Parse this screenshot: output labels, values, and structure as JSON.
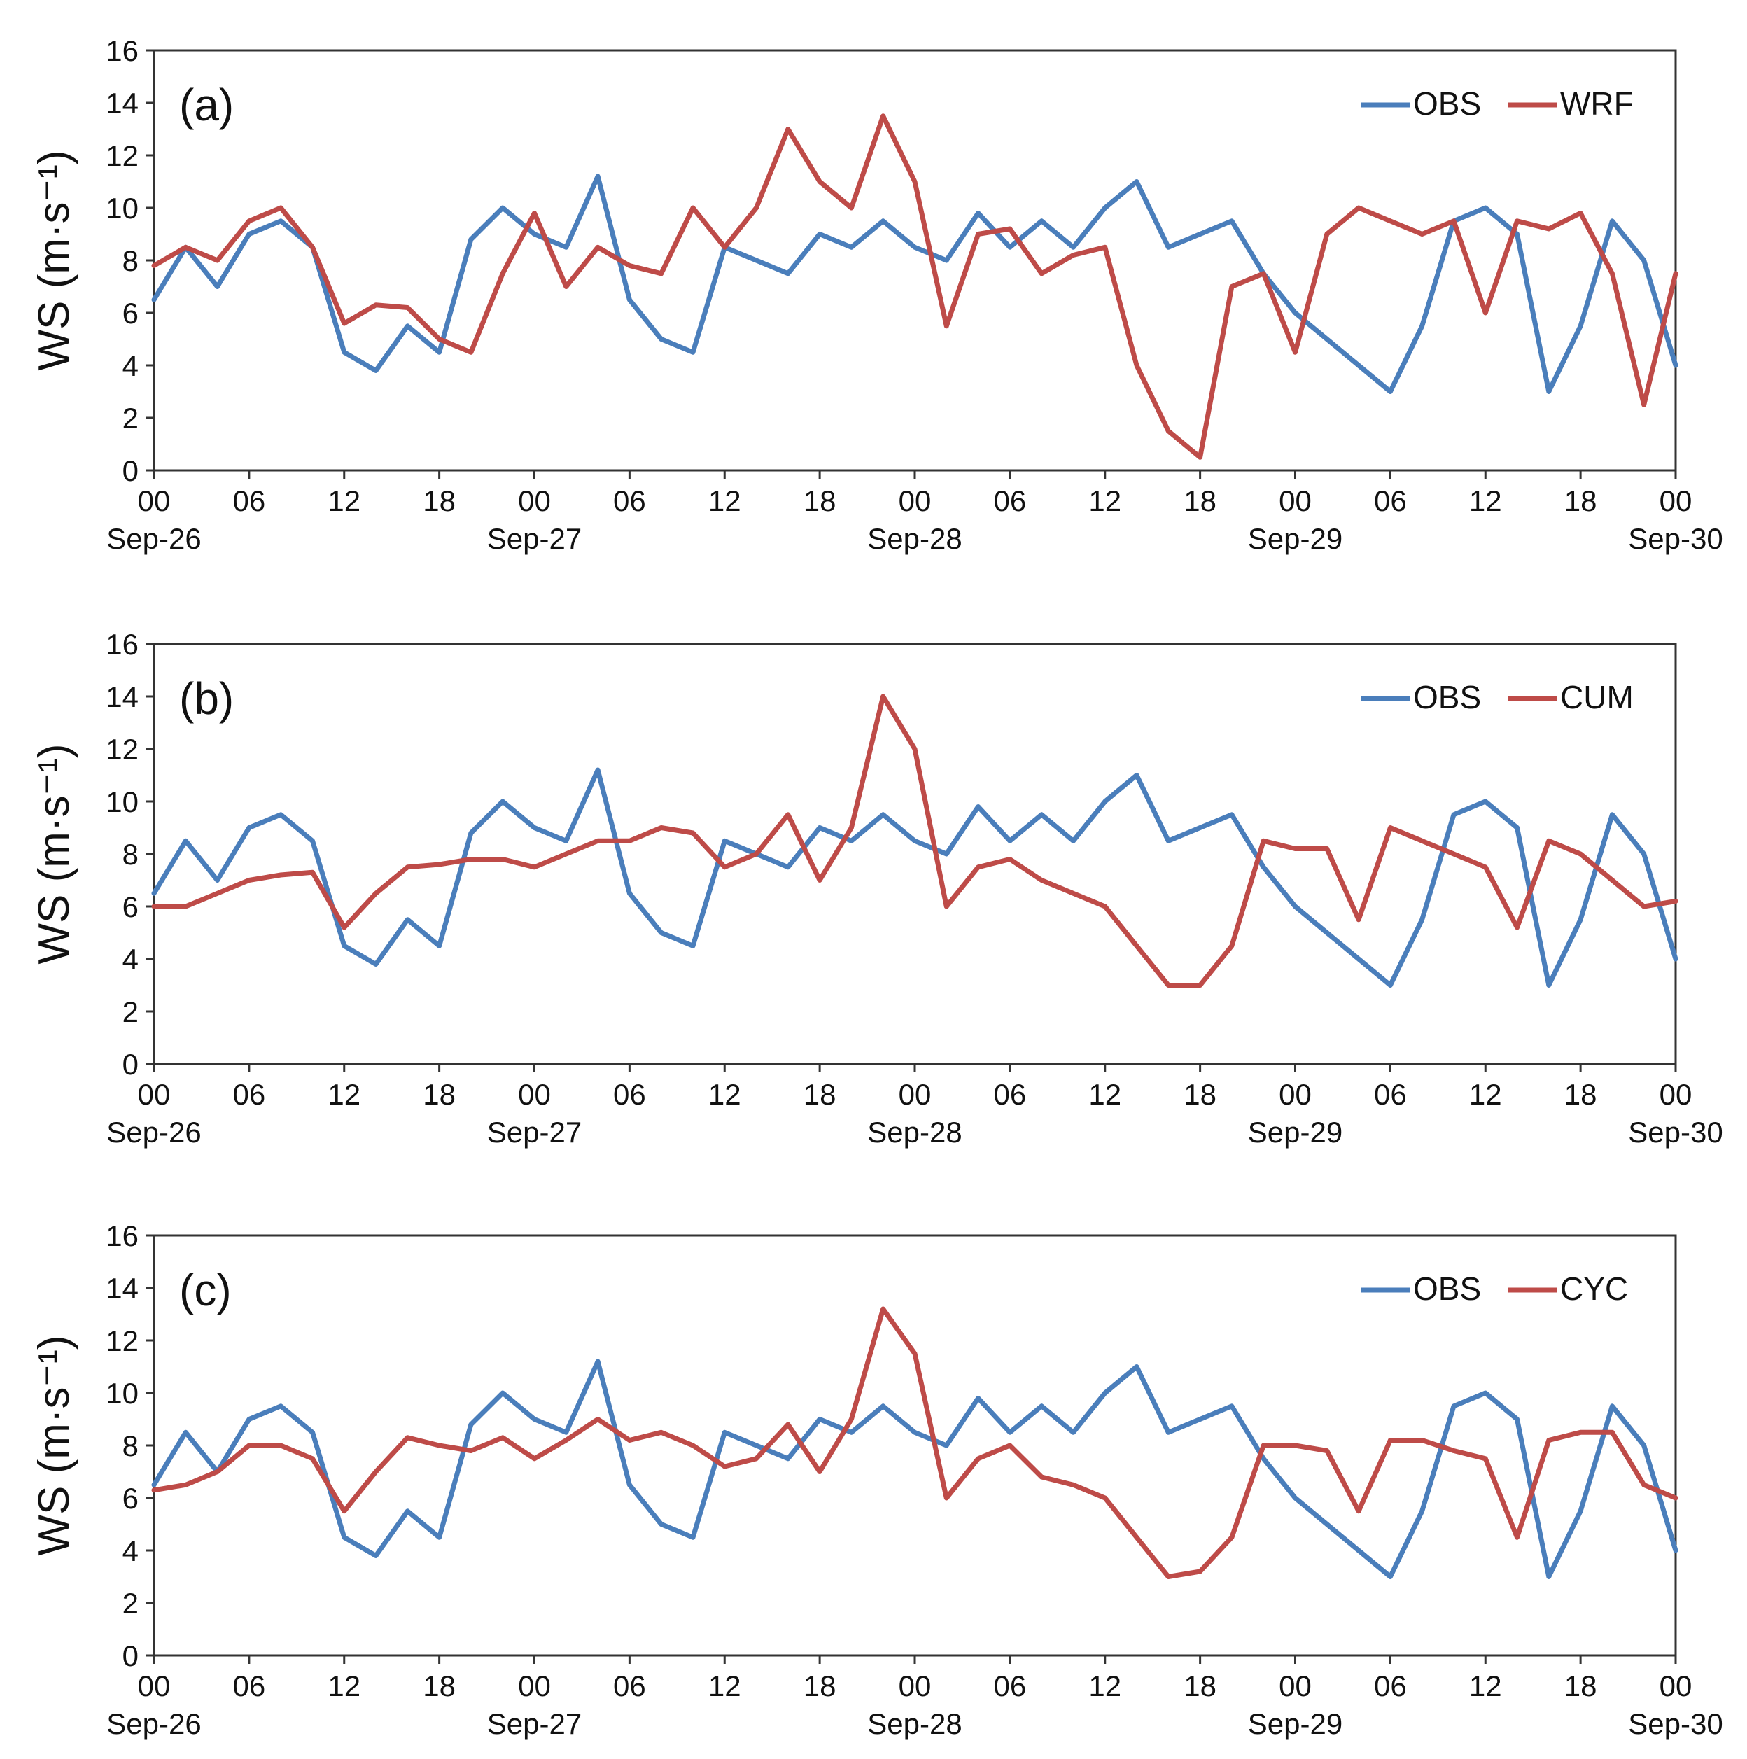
{
  "figure": {
    "ylabel": "WS (m·s⁻¹)",
    "x_tick_labels": [
      "00",
      "06",
      "12",
      "18",
      "00",
      "06",
      "12",
      "18",
      "00",
      "06",
      "12",
      "18",
      "00",
      "06",
      "12",
      "18",
      "00"
    ],
    "x_date_labels": [
      "Sep-26",
      "Sep-27",
      "Sep-28",
      "Sep-29",
      "Sep-30"
    ],
    "y_tick_labels": [
      "0",
      "2",
      "4",
      "6",
      "8",
      "10",
      "12",
      "14",
      "16"
    ]
  },
  "colors": {
    "OBS": "#4a7ebb",
    "model": "#be4b48",
    "axis": "#333333"
  },
  "chart_data": [
    {
      "type": "line",
      "panel_label": "(a)",
      "legend": [
        "OBS",
        "WRF"
      ],
      "legend_placement": "top-right",
      "ylabel": "WS (m·s⁻¹)",
      "xlim_hours": [
        0,
        96
      ],
      "ylim": [
        0,
        16
      ],
      "grid": false,
      "x_hours": [
        0,
        2,
        4,
        6,
        8,
        10,
        12,
        14,
        16,
        18,
        20,
        22,
        24,
        26,
        28,
        30,
        32,
        34,
        36,
        38,
        40,
        42,
        44,
        46,
        48,
        50,
        52,
        54,
        56,
        58,
        60,
        62,
        64,
        66,
        68,
        70,
        72,
        74,
        76,
        78,
        80,
        82,
        84,
        86,
        88,
        90,
        92,
        94,
        96
      ],
      "series": [
        {
          "name": "OBS",
          "values": [
            6.5,
            8.5,
            7.0,
            9.0,
            9.5,
            8.5,
            4.5,
            3.8,
            5.5,
            4.5,
            8.8,
            10.0,
            9.0,
            8.5,
            11.2,
            6.5,
            5.0,
            4.5,
            8.5,
            8.0,
            7.5,
            9.0,
            8.5,
            9.5,
            8.5,
            8.0,
            9.8,
            8.5,
            9.5,
            8.5,
            10.0,
            11.0,
            8.5,
            9.0,
            9.5,
            7.5,
            6.0,
            5.0,
            4.0,
            3.0,
            5.5,
            9.5,
            10.0,
            9.0,
            3.0,
            5.5,
            9.5,
            8.0,
            4.0
          ]
        },
        {
          "name": "WRF",
          "values": [
            7.8,
            8.5,
            8.0,
            9.5,
            10.0,
            8.5,
            5.6,
            6.3,
            6.2,
            5.0,
            4.5,
            7.5,
            9.8,
            7.0,
            8.5,
            7.8,
            7.5,
            10.0,
            8.5,
            10.0,
            13.0,
            11.0,
            10.0,
            13.5,
            11.0,
            5.5,
            9.0,
            9.2,
            7.5,
            8.2,
            8.5,
            4.0,
            1.5,
            0.5,
            7.0,
            7.5,
            4.5,
            9.0,
            10.0,
            9.5,
            9.0,
            9.5,
            6.0,
            9.5,
            9.2,
            9.8,
            7.5,
            2.5,
            7.5
          ]
        }
      ]
    },
    {
      "type": "line",
      "panel_label": "(b)",
      "legend": [
        "OBS",
        "CUM"
      ],
      "legend_placement": "top-right",
      "ylabel": "WS (m·s⁻¹)",
      "xlim_hours": [
        0,
        96
      ],
      "ylim": [
        0,
        16
      ],
      "grid": false,
      "x_hours": [
        0,
        2,
        4,
        6,
        8,
        10,
        12,
        14,
        16,
        18,
        20,
        22,
        24,
        26,
        28,
        30,
        32,
        34,
        36,
        38,
        40,
        42,
        44,
        46,
        48,
        50,
        52,
        54,
        56,
        58,
        60,
        62,
        64,
        66,
        68,
        70,
        72,
        74,
        76,
        78,
        80,
        82,
        84,
        86,
        88,
        90,
        92,
        94,
        96
      ],
      "series": [
        {
          "name": "OBS",
          "values": [
            6.5,
            8.5,
            7.0,
            9.0,
            9.5,
            8.5,
            4.5,
            3.8,
            5.5,
            4.5,
            8.8,
            10.0,
            9.0,
            8.5,
            11.2,
            6.5,
            5.0,
            4.5,
            8.5,
            8.0,
            7.5,
            9.0,
            8.5,
            9.5,
            8.5,
            8.0,
            9.8,
            8.5,
            9.5,
            8.5,
            10.0,
            11.0,
            8.5,
            9.0,
            9.5,
            7.5,
            6.0,
            5.0,
            4.0,
            3.0,
            5.5,
            9.5,
            10.0,
            9.0,
            3.0,
            5.5,
            9.5,
            8.0,
            4.0
          ]
        },
        {
          "name": "CUM",
          "values": [
            6.0,
            6.0,
            6.5,
            7.0,
            7.2,
            7.3,
            5.2,
            6.5,
            7.5,
            7.6,
            7.8,
            7.8,
            7.5,
            8.0,
            8.5,
            8.5,
            9.0,
            8.8,
            7.5,
            8.0,
            9.5,
            7.0,
            9.0,
            14.0,
            12.0,
            6.0,
            7.5,
            7.8,
            7.0,
            6.5,
            6.0,
            4.5,
            3.0,
            3.0,
            4.5,
            8.5,
            8.2,
            8.2,
            5.5,
            9.0,
            8.5,
            8.0,
            7.5,
            5.2,
            8.5,
            8.0,
            7.0,
            6.0,
            6.2
          ]
        }
      ]
    },
    {
      "type": "line",
      "panel_label": "(c)",
      "legend": [
        "OBS",
        "CYC"
      ],
      "legend_placement": "top-right",
      "ylabel": "WS (m·s⁻¹)",
      "xlim_hours": [
        0,
        96
      ],
      "ylim": [
        0,
        16
      ],
      "grid": false,
      "x_hours": [
        0,
        2,
        4,
        6,
        8,
        10,
        12,
        14,
        16,
        18,
        20,
        22,
        24,
        26,
        28,
        30,
        32,
        34,
        36,
        38,
        40,
        42,
        44,
        46,
        48,
        50,
        52,
        54,
        56,
        58,
        60,
        62,
        64,
        66,
        68,
        70,
        72,
        74,
        76,
        78,
        80,
        82,
        84,
        86,
        88,
        90,
        92,
        94,
        96
      ],
      "series": [
        {
          "name": "OBS",
          "values": [
            6.5,
            8.5,
            7.0,
            9.0,
            9.5,
            8.5,
            4.5,
            3.8,
            5.5,
            4.5,
            8.8,
            10.0,
            9.0,
            8.5,
            11.2,
            6.5,
            5.0,
            4.5,
            8.5,
            8.0,
            7.5,
            9.0,
            8.5,
            9.5,
            8.5,
            8.0,
            9.8,
            8.5,
            9.5,
            8.5,
            10.0,
            11.0,
            8.5,
            9.0,
            9.5,
            7.5,
            6.0,
            5.0,
            4.0,
            3.0,
            5.5,
            9.5,
            10.0,
            9.0,
            3.0,
            5.5,
            9.5,
            8.0,
            4.0
          ]
        },
        {
          "name": "CYC",
          "values": [
            6.3,
            6.5,
            7.0,
            8.0,
            8.0,
            7.5,
            5.5,
            7.0,
            8.3,
            8.0,
            7.8,
            8.3,
            7.5,
            8.2,
            9.0,
            8.2,
            8.5,
            8.0,
            7.2,
            7.5,
            8.8,
            7.0,
            9.0,
            13.2,
            11.5,
            6.0,
            7.5,
            8.0,
            6.8,
            6.5,
            6.0,
            4.5,
            3.0,
            3.2,
            4.5,
            8.0,
            8.0,
            7.8,
            5.5,
            8.2,
            8.2,
            7.8,
            7.5,
            4.5,
            8.2,
            8.5,
            8.5,
            6.5,
            6.0
          ]
        }
      ]
    }
  ]
}
